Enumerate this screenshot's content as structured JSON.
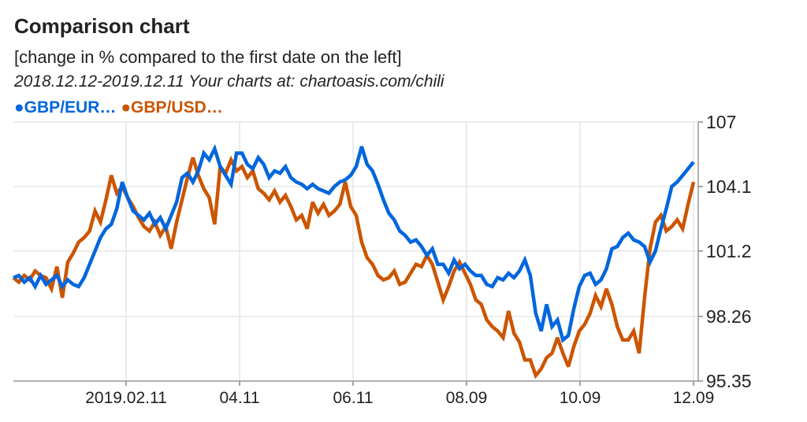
{
  "header": {
    "title": "Comparison chart",
    "subtitle": "[change in % compared to the first date on the left]",
    "range": "2018.12.12-2019.12.11 Your charts at: chartoasis.com/chili"
  },
  "legend": [
    {
      "label": "●GBP/EUR…",
      "color": "#0066DD"
    },
    {
      "label": "●GBP/USD…",
      "color": "#CC5500"
    }
  ],
  "chart_data": {
    "type": "line",
    "title": "Comparison chart",
    "subtitle": "[change in % compared to the first date on the left]",
    "xlabel": "",
    "ylabel": "",
    "ylim": [
      95.35,
      107
    ],
    "y_ticks": [
      "107",
      "104.1",
      "101.2",
      "98.26",
      "95.35"
    ],
    "x_ticks": [
      "2019.02.11",
      "04.11",
      "06.11",
      "08.09",
      "10.09",
      "12.09"
    ],
    "y_axis_position": "right",
    "grid": true,
    "legend_position": "top-left",
    "x_range": [
      "2018.12.12",
      "2019.12.11"
    ],
    "x": [
      0,
      1,
      2,
      3,
      4,
      5,
      6,
      7,
      8,
      9,
      10,
      11,
      12,
      13,
      14,
      15,
      16,
      17,
      18,
      19,
      20,
      21,
      22,
      23,
      24,
      25,
      26,
      27,
      28,
      29,
      30,
      31,
      32,
      33,
      34,
      35,
      36,
      37,
      38,
      39,
      40,
      41,
      42,
      43,
      44,
      45,
      46,
      47,
      48,
      49,
      50,
      51,
      52,
      53,
      54,
      55,
      56,
      57,
      58,
      59,
      60,
      61,
      62,
      63,
      64,
      65,
      66,
      67,
      68,
      69,
      70,
      71,
      72,
      73,
      74,
      75,
      76,
      77,
      78,
      79,
      80,
      81,
      82,
      83,
      84,
      85,
      86,
      87,
      88,
      89,
      90,
      91,
      92,
      93,
      94,
      95,
      96,
      97,
      98,
      99,
      100,
      101,
      102,
      103,
      104,
      105,
      106,
      107,
      108,
      109,
      110,
      111,
      112,
      113,
      114,
      115,
      116,
      117,
      118,
      119,
      120,
      121,
      122,
      123,
      124,
      125
    ],
    "series": [
      {
        "name": "GBP/EUR",
        "color": "#0066DD",
        "values": [
          100.0,
          100.1,
          99.8,
          100.0,
          99.6,
          100.1,
          99.7,
          99.9,
          100.1,
          99.6,
          99.9,
          99.7,
          99.6,
          100.0,
          100.6,
          101.2,
          101.8,
          102.2,
          102.4,
          103.1,
          104.3,
          103.6,
          103.0,
          102.8,
          102.6,
          102.9,
          102.4,
          102.7,
          102.2,
          102.8,
          103.4,
          104.5,
          104.7,
          104.3,
          104.8,
          105.6,
          105.3,
          105.8,
          105.0,
          104.6,
          104.2,
          105.6,
          105.6,
          105.1,
          104.9,
          105.4,
          105.1,
          104.5,
          104.8,
          104.7,
          105.0,
          104.5,
          104.3,
          104.2,
          104.0,
          104.2,
          104.0,
          103.9,
          103.8,
          104.1,
          104.3,
          104.4,
          104.6,
          105.0,
          105.9,
          105.1,
          104.8,
          104.2,
          103.5,
          102.9,
          102.6,
          102.1,
          101.9,
          101.6,
          101.7,
          101.4,
          101.0,
          101.3,
          100.6,
          100.6,
          100.2,
          100.8,
          100.4,
          100.6,
          100.3,
          100.1,
          100.1,
          99.7,
          99.6,
          100.0,
          99.9,
          100.2,
          100.0,
          100.3,
          100.8,
          100.1,
          98.4,
          97.6,
          98.8,
          97.8,
          98.1,
          97.2,
          97.4,
          98.6,
          99.6,
          100.1,
          100.2,
          99.7,
          99.9,
          100.4,
          101.3,
          101.4,
          101.8,
          102.0,
          101.7,
          101.6,
          101.4,
          100.7,
          101.2,
          102.2,
          103.1,
          104.1,
          104.3,
          104.6,
          104.9,
          105.2
        ]
      },
      {
        "name": "GBP/USD",
        "color": "#CC5500",
        "values": [
          100.0,
          99.8,
          100.1,
          99.9,
          100.3,
          100.1,
          100.0,
          99.5,
          100.5,
          99.1,
          100.7,
          101.1,
          101.6,
          101.8,
          102.1,
          103.0,
          102.5,
          103.5,
          104.6,
          103.8,
          104.1,
          103.6,
          103.2,
          102.7,
          102.3,
          102.1,
          102.5,
          101.9,
          102.3,
          101.3,
          102.5,
          103.5,
          104.5,
          105.4,
          104.6,
          104.0,
          103.6,
          102.4,
          105.0,
          104.7,
          105.3,
          104.8,
          105.0,
          104.5,
          104.8,
          104.0,
          103.8,
          103.5,
          103.9,
          103.4,
          103.7,
          103.2,
          102.6,
          102.8,
          102.2,
          103.4,
          102.9,
          103.3,
          102.8,
          103.0,
          103.3,
          104.3,
          103.2,
          102.8,
          101.6,
          100.9,
          100.6,
          100.1,
          99.9,
          100.0,
          100.3,
          99.7,
          99.8,
          100.2,
          100.6,
          100.5,
          101.0,
          100.6,
          99.8,
          99.0,
          99.6,
          100.3,
          100.7,
          100.2,
          99.7,
          99.0,
          98.8,
          98.1,
          97.8,
          97.6,
          97.3,
          98.5,
          97.5,
          97.1,
          96.3,
          96.3,
          95.6,
          95.9,
          96.4,
          96.6,
          97.3,
          96.6,
          96.0,
          96.9,
          97.6,
          97.9,
          98.4,
          99.2,
          98.7,
          99.5,
          98.8,
          97.8,
          97.2,
          97.2,
          97.6,
          96.6,
          99.1,
          101.3,
          102.5,
          102.8,
          102.1,
          102.3,
          102.6,
          102.2,
          103.3,
          104.3
        ]
      }
    ]
  }
}
